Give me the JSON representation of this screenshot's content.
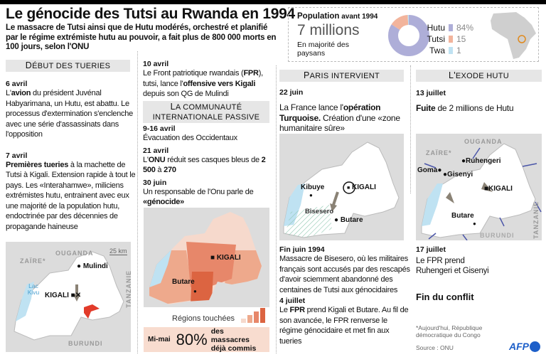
{
  "header": {
    "title": "Le génocide des Tutsi au Rwanda en 1994",
    "subtitle": "Le massacre de Tutsi ainsi que de Hutu modérés, orchestré et planifié par le régime extrémiste hutu au pouvoir, a fait plus de 800 000 morts en 100 jours, selon l'ONU"
  },
  "population": {
    "label_bold": "Population",
    "label_rest": " avant 1994",
    "total": "7 millions",
    "note": "En majorité des paysans",
    "groups": [
      {
        "name": "Hutu",
        "value": 84,
        "display": "84%",
        "color": "#aeaed8"
      },
      {
        "name": "Tutsi",
        "value": 15,
        "display": "15",
        "color": "#f2b49c"
      },
      {
        "name": "Twa",
        "value": 1,
        "display": "1",
        "color": "#bfe2f2"
      }
    ]
  },
  "col1": {
    "header": "Début des tueries",
    "events": [
      {
        "date": "6 avril",
        "segments": [
          {
            "t": "L'"
          },
          {
            "t": "avion",
            "b": true
          },
          {
            "t": " du président Juvénal Habyarimana, un Hutu, est abattu. Le processus d'extermination s'enclenche avec une série d'assassinats dans l'opposition"
          }
        ]
      },
      {
        "date": "7 avril",
        "segments": [
          {
            "t": "Premières tueries",
            "b": true
          },
          {
            "t": " à la machette de Tutsi à Kigali. Extension rapide à tout le pays. Les «Interahamwe», miliciens extrémistes hutu, entrainent avec eux une majorité de la population hutu, endoctrinée par des décennies de propagande haineuse"
          }
        ]
      }
    ],
    "map": {
      "zaire": "ZAÏRE*",
      "ouganda": "OUGANDA",
      "tanzanie": "TANZANIE",
      "burundi": "BURUNDI",
      "lake": "Lac Kivu",
      "scale": "25 km",
      "mulindi": "Mulindi",
      "kigali": "KIGALI"
    }
  },
  "col2": {
    "event0": {
      "date": "10 avril",
      "segments": [
        {
          "t": "Le Front patriotique rwandais ("
        },
        {
          "t": "FPR",
          "b": true
        },
        {
          "t": "), tutsi, lance l'"
        },
        {
          "t": "offensive vers Kigali",
          "b": true
        },
        {
          "t": " depuis son QG de Mulindi"
        }
      ]
    },
    "header": "La communauté internationale passive",
    "events": [
      {
        "date": "9-16 avril",
        "segments": [
          {
            "t": "Évacuation des Occidentaux"
          }
        ]
      },
      {
        "date": "21 avril",
        "segments": [
          {
            "t": "L'"
          },
          {
            "t": "ONU",
            "b": true
          },
          {
            "t": " réduit ses casques bleus de "
          },
          {
            "t": "2 500",
            "b": true
          },
          {
            "t": " à "
          },
          {
            "t": "270",
            "b": true
          }
        ]
      },
      {
        "date": "30 juin",
        "segments": [
          {
            "t": "Un responsable de l'Onu parle de "
          },
          {
            "t": "«génocide»",
            "b": true
          }
        ]
      }
    ],
    "map": {
      "kigali": "KIGALI",
      "butare": "Butare"
    },
    "legend": "Régions touchées",
    "legend_colors": [
      "#f6d9cc",
      "#eea98c",
      "#e7876a",
      "#dc6441"
    ],
    "stat": {
      "period": "Mi-mai",
      "value": "80%",
      "text": "des massacres déjà commis"
    }
  },
  "col3": {
    "header": "Paris intervient",
    "event0": {
      "date": "22 juin",
      "segments": [
        {
          "t": "La France lance l'"
        },
        {
          "t": "opération Turquoise.",
          "b": true
        },
        {
          "t": " Création d'une «zone humanitaire sûre»"
        }
      ]
    },
    "map": {
      "kibuye": "Kibuye",
      "bisesero": "Bisesero",
      "kigali": "KIGALI",
      "butare": "Butare"
    },
    "events": [
      {
        "date": "Fin juin 1994",
        "segments": [
          {
            "t": "Massacre de Bisesero, où les militaires français sont accusés par des rescapés d'avoir sciemment abandonné des centaines de Tutsi aux génocidaires"
          }
        ]
      },
      {
        "date": "4 juillet",
        "segments": [
          {
            "t": "Le "
          },
          {
            "t": "FPR",
            "b": true
          },
          {
            "t": " prend Kigali et Butare. Au fil de son avancée, le FPR renverse le régime génocidaire et met fin aux tueries"
          }
        ]
      }
    ]
  },
  "col4": {
    "header": "L'exode hutu",
    "event0": {
      "date": "13 juillet",
      "segments": [
        {
          "t": "Fuite",
          "b": true
        },
        {
          "t": " de 2 millions de Hutu"
        }
      ]
    },
    "map": {
      "ouganda": "OUGANDA",
      "zaire": "ZAÏRE*",
      "goma": "Goma",
      "gisenyi": "Gisenyi",
      "ruhengeri": "Ruhengeri",
      "kigali": "KIGALI",
      "butare": "Butare",
      "burundi": "BURUNDI",
      "tanzanie": "TANZANIE"
    },
    "event1": {
      "date": "17 juillet",
      "segments": [
        {
          "t": "Le FPR prend Ruhengeri et Gisenyi"
        }
      ]
    },
    "end": "Fin du conflit",
    "footnote": "*Aujourd'hui, République démocratique du Congo",
    "source": "Source : ONU",
    "logo": "AFP"
  }
}
